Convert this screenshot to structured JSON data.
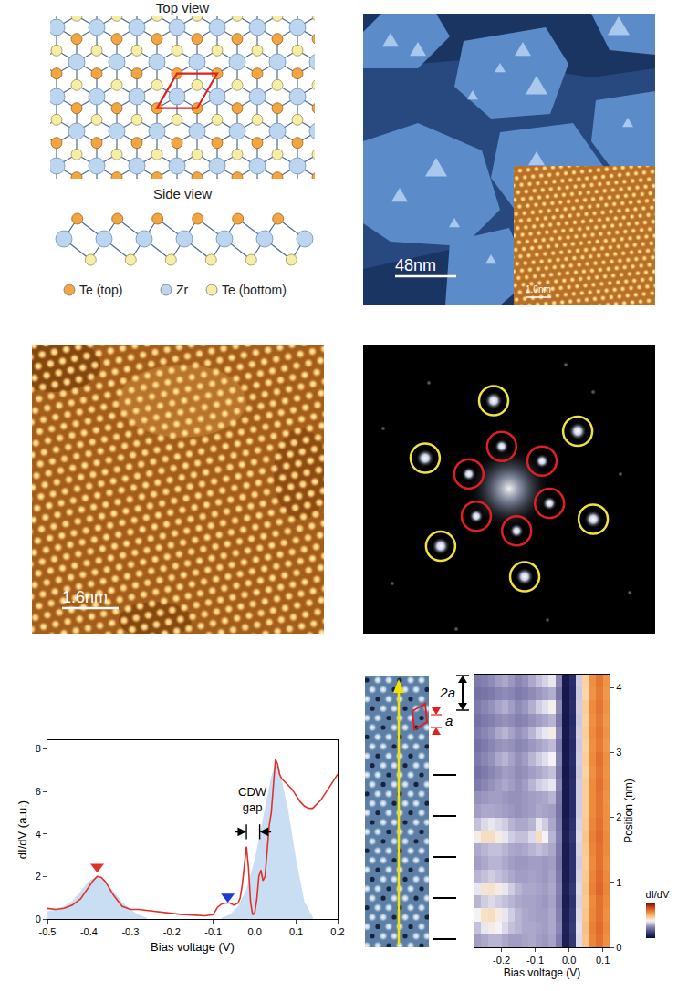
{
  "figure": {
    "structure": {
      "top_view": "Top view",
      "side_view": "Side view",
      "legend": [
        {
          "label": "Te (top)",
          "color": "#f2a541"
        },
        {
          "label": "Zr",
          "color": "#bcd5f0"
        },
        {
          "label": "Te (bottom)",
          "color": "#f6eea6"
        }
      ]
    },
    "topography": {
      "scale_bar": "48nm",
      "inset_scale_bar": "1.0nm"
    },
    "atomic_image": {
      "scale_bar": "1.6nm"
    },
    "fft": {
      "outer_spots": 6,
      "inner_spots": 6,
      "outer_color": "#f0e040",
      "inner_color": "#e02020"
    },
    "line_cut": {
      "period_label": "a",
      "double_period_label": "2a"
    }
  },
  "chart_data": [
    {
      "type": "line",
      "xlabel": "Bias voltage (V)",
      "ylabel": "dI/dV (a.u.)",
      "xlim": [
        -0.5,
        0.2
      ],
      "ylim": [
        0,
        8.4
      ],
      "xticks": [
        -0.5,
        -0.4,
        -0.3,
        -0.2,
        -0.1,
        {
          "value": 0,
          "label": "0.0"
        },
        0.1,
        0.2
      ],
      "yticks": [
        0,
        2,
        4,
        6,
        8
      ],
      "series": [
        {
          "type": "area",
          "color": "#c9def2",
          "x": [
            -0.5,
            -0.48,
            -0.46,
            -0.44,
            -0.42,
            -0.4,
            -0.38,
            -0.36,
            -0.34,
            -0.32,
            -0.3,
            -0.28,
            -0.26
          ],
          "values": [
            0.35,
            0.45,
            0.6,
            0.85,
            1.3,
            1.8,
            2.0,
            1.8,
            1.3,
            0.8,
            0.45,
            0.2,
            0.05
          ]
        },
        {
          "type": "area",
          "color": "#c9def2",
          "x": [
            -0.08,
            -0.06,
            -0.04,
            -0.02,
            0,
            0.02,
            0.04,
            0.05,
            0.06,
            0.08,
            0.1,
            0.12,
            0.14
          ],
          "values": [
            0.05,
            0.2,
            0.6,
            1.4,
            2.8,
            4.8,
            6.7,
            7.3,
            7.0,
            5.2,
            2.8,
            0.8,
            0.1
          ]
        },
        {
          "type": "line",
          "color": "#e0302a",
          "x": [
            -0.5,
            -0.48,
            -0.46,
            -0.44,
            -0.42,
            -0.4,
            -0.39,
            -0.38,
            -0.37,
            -0.36,
            -0.35,
            -0.34,
            -0.32,
            -0.3,
            -0.28,
            -0.26,
            -0.24,
            -0.22,
            -0.2,
            -0.18,
            -0.16,
            -0.14,
            -0.12,
            -0.1,
            -0.09,
            -0.08,
            -0.07,
            -0.06,
            -0.05,
            -0.04,
            -0.035,
            -0.03,
            -0.025,
            -0.02,
            -0.015,
            -0.01,
            -0.005,
            0,
            0.005,
            0.01,
            0.015,
            0.02,
            0.025,
            0.03,
            0.035,
            0.04,
            0.045,
            0.05,
            0.055,
            0.06,
            0.065,
            0.07,
            0.08,
            0.09,
            0.1,
            0.11,
            0.12,
            0.13,
            0.14,
            0.15,
            0.16,
            0.17,
            0.18,
            0.19,
            0.2
          ],
          "values": [
            0.5,
            0.45,
            0.5,
            0.65,
            0.95,
            1.5,
            1.8,
            2.0,
            1.95,
            1.75,
            1.45,
            1.1,
            0.6,
            0.45,
            0.45,
            0.4,
            0.35,
            0.3,
            0.25,
            0.22,
            0.2,
            0.18,
            0.15,
            0.2,
            0.55,
            0.7,
            0.75,
            0.75,
            0.65,
            0.75,
            1.0,
            1.6,
            2.6,
            3.4,
            2.4,
            0.8,
            0.2,
            0.3,
            0.9,
            2.0,
            2.3,
            1.8,
            2.0,
            3.3,
            4.4,
            5.0,
            6.5,
            7.5,
            7.3,
            6.8,
            6.6,
            6.5,
            6.3,
            6.1,
            5.8,
            5.5,
            5.3,
            5.2,
            5.2,
            5.4,
            5.6,
            5.9,
            6.2,
            6.5,
            6.8
          ]
        },
        {
          "type": "scatter",
          "marker": "triangle-down",
          "color": "#e0302a",
          "x": [
            -0.38
          ],
          "values": [
            2.45
          ]
        },
        {
          "type": "scatter",
          "marker": "triangle-down",
          "color": "#1f3ad0",
          "x": [
            -0.065
          ],
          "values": [
            1.05
          ]
        }
      ],
      "annotations": [
        {
          "text": "CDW gap",
          "x": -0.004,
          "y": 5.6
        }
      ],
      "gap": {
        "x": [
          -0.02,
          0.012
        ],
        "y": 4.1
      }
    },
    {
      "type": "heatmap",
      "xlabel": "Bias voltage (V)",
      "ylabel": "Position (nm)",
      "xlim": [
        -0.28,
        0.12
      ],
      "ylim": [
        0,
        4.2
      ],
      "xticks": [
        -0.2,
        -0.1,
        {
          "value": 0,
          "label": "0.0"
        },
        0.1
      ],
      "yticks": [
        0,
        1,
        2,
        3,
        4
      ],
      "colorbar": {
        "label": "dI/dV",
        "zlim": [
          0,
          1
        ]
      },
      "x": [
        -0.27,
        -0.25,
        -0.23,
        -0.21,
        -0.19,
        -0.17,
        -0.15,
        -0.13,
        -0.11,
        -0.09,
        -0.07,
        -0.05,
        -0.03,
        -0.01,
        0.01,
        0.03,
        0.05,
        0.07,
        0.09,
        0.11
      ],
      "y": [
        0.1,
        0.3,
        0.5,
        0.7,
        0.9,
        1.1,
        1.3,
        1.5,
        1.7,
        1.9,
        2.1,
        2.3,
        2.5,
        2.7,
        2.9,
        3.1,
        3.3,
        3.5,
        3.7,
        3.9,
        4.1
      ],
      "z": [
        [
          0.36,
          0.38,
          0.4,
          0.4,
          0.38,
          0.36,
          0.36,
          0.37,
          0.38,
          0.36,
          0.35,
          0.37,
          0.3,
          0.07,
          0.14,
          0.46,
          0.62,
          0.76,
          0.8,
          0.74
        ],
        [
          0.42,
          0.48,
          0.52,
          0.5,
          0.46,
          0.42,
          0.4,
          0.38,
          0.38,
          0.37,
          0.36,
          0.38,
          0.32,
          0.08,
          0.15,
          0.47,
          0.63,
          0.77,
          0.81,
          0.75
        ],
        [
          0.5,
          0.55,
          0.56,
          0.52,
          0.48,
          0.44,
          0.4,
          0.38,
          0.37,
          0.36,
          0.36,
          0.38,
          0.31,
          0.07,
          0.14,
          0.46,
          0.62,
          0.76,
          0.8,
          0.74
        ],
        [
          0.4,
          0.44,
          0.46,
          0.44,
          0.42,
          0.4,
          0.38,
          0.37,
          0.37,
          0.36,
          0.35,
          0.37,
          0.3,
          0.06,
          0.13,
          0.45,
          0.61,
          0.75,
          0.8,
          0.75
        ],
        [
          0.48,
          0.54,
          0.55,
          0.52,
          0.48,
          0.44,
          0.4,
          0.38,
          0.38,
          0.37,
          0.36,
          0.38,
          0.31,
          0.07,
          0.14,
          0.46,
          0.62,
          0.77,
          0.82,
          0.76
        ],
        [
          0.4,
          0.42,
          0.44,
          0.42,
          0.4,
          0.38,
          0.36,
          0.36,
          0.37,
          0.36,
          0.35,
          0.37,
          0.3,
          0.06,
          0.13,
          0.45,
          0.61,
          0.76,
          0.81,
          0.75
        ],
        [
          0.36,
          0.38,
          0.4,
          0.4,
          0.38,
          0.36,
          0.35,
          0.35,
          0.36,
          0.36,
          0.35,
          0.36,
          0.29,
          0.06,
          0.13,
          0.44,
          0.6,
          0.75,
          0.8,
          0.74
        ],
        [
          0.38,
          0.4,
          0.42,
          0.42,
          0.4,
          0.38,
          0.37,
          0.38,
          0.4,
          0.42,
          0.4,
          0.38,
          0.3,
          0.06,
          0.13,
          0.45,
          0.61,
          0.76,
          0.8,
          0.75
        ],
        [
          0.52,
          0.56,
          0.56,
          0.52,
          0.48,
          0.44,
          0.42,
          0.42,
          0.46,
          0.56,
          0.5,
          0.4,
          0.31,
          0.07,
          0.14,
          0.46,
          0.62,
          0.77,
          0.81,
          0.75
        ],
        [
          0.42,
          0.46,
          0.48,
          0.46,
          0.44,
          0.4,
          0.38,
          0.38,
          0.4,
          0.48,
          0.44,
          0.38,
          0.3,
          0.06,
          0.13,
          0.45,
          0.61,
          0.76,
          0.8,
          0.74
        ],
        [
          0.36,
          0.38,
          0.38,
          0.37,
          0.36,
          0.35,
          0.34,
          0.35,
          0.36,
          0.38,
          0.37,
          0.36,
          0.29,
          0.05,
          0.12,
          0.44,
          0.6,
          0.75,
          0.79,
          0.74
        ],
        [
          0.34,
          0.35,
          0.36,
          0.36,
          0.35,
          0.34,
          0.34,
          0.35,
          0.36,
          0.37,
          0.38,
          0.4,
          0.3,
          0.05,
          0.12,
          0.44,
          0.6,
          0.75,
          0.79,
          0.73
        ],
        [
          0.3,
          0.32,
          0.34,
          0.36,
          0.38,
          0.36,
          0.34,
          0.36,
          0.4,
          0.44,
          0.46,
          0.48,
          0.32,
          0.05,
          0.12,
          0.44,
          0.6,
          0.75,
          0.8,
          0.74
        ],
        [
          0.28,
          0.3,
          0.32,
          0.34,
          0.36,
          0.35,
          0.33,
          0.34,
          0.36,
          0.38,
          0.4,
          0.42,
          0.3,
          0.04,
          0.11,
          0.43,
          0.59,
          0.74,
          0.79,
          0.73
        ],
        [
          0.3,
          0.32,
          0.34,
          0.38,
          0.4,
          0.37,
          0.34,
          0.36,
          0.4,
          0.44,
          0.47,
          0.5,
          0.32,
          0.05,
          0.12,
          0.44,
          0.6,
          0.75,
          0.8,
          0.74
        ],
        [
          0.28,
          0.3,
          0.32,
          0.34,
          0.35,
          0.34,
          0.32,
          0.33,
          0.35,
          0.37,
          0.39,
          0.41,
          0.3,
          0.04,
          0.11,
          0.43,
          0.59,
          0.74,
          0.78,
          0.72
        ],
        [
          0.3,
          0.32,
          0.34,
          0.38,
          0.4,
          0.37,
          0.34,
          0.36,
          0.4,
          0.45,
          0.48,
          0.52,
          0.33,
          0.05,
          0.12,
          0.44,
          0.6,
          0.75,
          0.79,
          0.73
        ],
        [
          0.28,
          0.3,
          0.31,
          0.33,
          0.34,
          0.33,
          0.31,
          0.32,
          0.34,
          0.36,
          0.38,
          0.4,
          0.3,
          0.04,
          0.11,
          0.43,
          0.59,
          0.74,
          0.78,
          0.72
        ],
        [
          0.3,
          0.32,
          0.34,
          0.37,
          0.39,
          0.36,
          0.33,
          0.35,
          0.39,
          0.44,
          0.47,
          0.51,
          0.33,
          0.05,
          0.12,
          0.44,
          0.6,
          0.75,
          0.79,
          0.73
        ],
        [
          0.28,
          0.29,
          0.3,
          0.32,
          0.33,
          0.32,
          0.3,
          0.31,
          0.33,
          0.35,
          0.37,
          0.39,
          0.29,
          0.04,
          0.11,
          0.43,
          0.58,
          0.73,
          0.78,
          0.72
        ],
        [
          0.3,
          0.31,
          0.33,
          0.36,
          0.38,
          0.35,
          0.32,
          0.34,
          0.38,
          0.42,
          0.45,
          0.48,
          0.32,
          0.05,
          0.12,
          0.44,
          0.59,
          0.74,
          0.79,
          0.73
        ]
      ]
    }
  ]
}
